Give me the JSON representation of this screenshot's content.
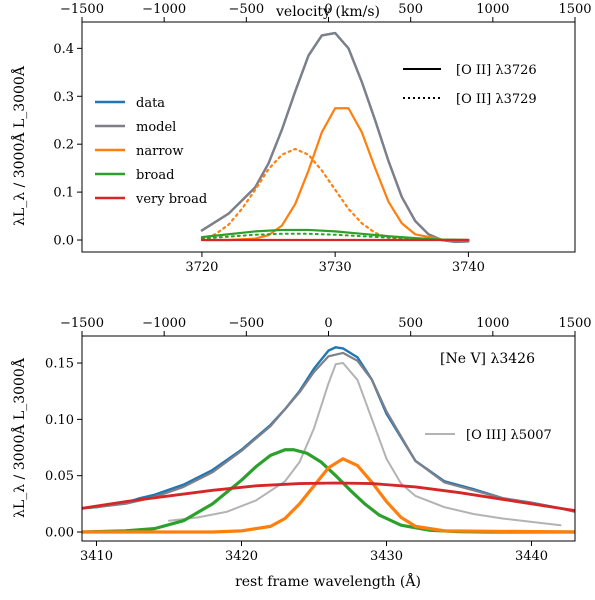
{
  "chart_data": [
    {
      "type": "line",
      "top_axis_label": "velocity (km/s)",
      "top_ticks": [
        -1500,
        -1000,
        -500,
        0,
        500,
        1000,
        1500
      ],
      "xlim": [
        3711,
        3748
      ],
      "ylim": [
        -0.025,
        0.455
      ],
      "x_ticks": [
        3720,
        3730,
        3740
      ],
      "y_ticks": [
        0.0,
        0.1,
        0.2,
        0.3,
        0.4
      ],
      "ylabel": "λL_λ / 3000Å L_3000Å",
      "legend_placement": "left",
      "line_style_legend": [
        {
          "label": "[O II] λ3726",
          "style": "solid"
        },
        {
          "label": "[O II] λ3729",
          "style": "dotted"
        }
      ],
      "series": [
        {
          "name": "data",
          "color": "#1f77b4",
          "style": "solid",
          "width": 2.2,
          "x": [
            3720,
            3722,
            3724,
            3725,
            3726,
            3727,
            3728,
            3729,
            3730,
            3731,
            3732,
            3733,
            3734,
            3735,
            3736,
            3737,
            3738,
            3739,
            3740
          ],
          "y": [
            0.02,
            0.055,
            0.11,
            0.16,
            0.23,
            0.31,
            0.385,
            0.427,
            0.432,
            0.4,
            0.33,
            0.25,
            0.165,
            0.09,
            0.04,
            0.012,
            0.0,
            -0.004,
            -0.003
          ]
        },
        {
          "name": "model",
          "color": "#7f7f8a",
          "style": "solid",
          "width": 2.4,
          "x": [
            3720,
            3722,
            3724,
            3725,
            3726,
            3727,
            3728,
            3729,
            3730,
            3731,
            3732,
            3733,
            3734,
            3735,
            3736,
            3737,
            3738,
            3739,
            3740
          ],
          "y": [
            0.02,
            0.055,
            0.11,
            0.16,
            0.23,
            0.31,
            0.385,
            0.427,
            0.432,
            0.4,
            0.33,
            0.25,
            0.165,
            0.09,
            0.04,
            0.012,
            0.0,
            -0.004,
            -0.003
          ]
        },
        {
          "name": "narrow",
          "color": "#ff7f0e",
          "style": "solid",
          "width": 2.2,
          "x": [
            3720,
            3722,
            3724,
            3725,
            3726,
            3727,
            3728,
            3729,
            3730,
            3731,
            3732,
            3733,
            3734,
            3735,
            3736,
            3738,
            3740
          ],
          "y": [
            0.0,
            0.0,
            0.003,
            0.01,
            0.03,
            0.075,
            0.145,
            0.225,
            0.275,
            0.275,
            0.225,
            0.15,
            0.08,
            0.035,
            0.012,
            0.001,
            0.0
          ]
        },
        {
          "name": "",
          "color": "#ff7f0e",
          "style": "dotted",
          "width": 2.2,
          "x": [
            3720,
            3721,
            3722,
            3723,
            3724,
            3725,
            3726,
            3727,
            3728,
            3729,
            3730,
            3731,
            3732,
            3733,
            3734,
            3736,
            3738,
            3740
          ],
          "y": [
            0.003,
            0.012,
            0.032,
            0.065,
            0.105,
            0.148,
            0.178,
            0.19,
            0.178,
            0.145,
            0.105,
            0.065,
            0.035,
            0.015,
            0.005,
            0.001,
            0.0,
            0.0
          ]
        },
        {
          "name": "broad",
          "color": "#2ca02c",
          "style": "solid",
          "width": 2.2,
          "x": [
            3720,
            3722,
            3724,
            3726,
            3728,
            3730,
            3732,
            3734,
            3736,
            3738,
            3740
          ],
          "y": [
            0.006,
            0.012,
            0.018,
            0.021,
            0.021,
            0.018,
            0.013,
            0.008,
            0.004,
            0.001,
            0.0
          ]
        },
        {
          "name": "",
          "color": "#2ca02c",
          "style": "dotted",
          "width": 2.0,
          "x": [
            3720,
            3722,
            3724,
            3726,
            3728,
            3730,
            3732,
            3734,
            3736,
            3738,
            3740
          ],
          "y": [
            0.003,
            0.007,
            0.011,
            0.013,
            0.013,
            0.011,
            0.008,
            0.005,
            0.002,
            0.0,
            0.0
          ]
        },
        {
          "name": "very broad",
          "color": "#d62728",
          "style": "solid",
          "width": 2.2,
          "x": [
            3720,
            3725,
            3730,
            3735,
            3740
          ],
          "y": [
            0.0,
            0.0,
            0.0,
            0.0,
            0.0
          ]
        }
      ]
    },
    {
      "type": "line",
      "top_ticks": [
        -1500,
        -1000,
        -500,
        0,
        500,
        1000,
        1500
      ],
      "xlim": [
        3409,
        3443
      ],
      "ylim": [
        -0.008,
        0.174
      ],
      "x_ticks": [
        3410,
        3420,
        3430,
        3440
      ],
      "y_ticks": [
        0.0,
        0.05,
        0.1,
        0.15
      ],
      "xlabel": "rest frame wavelength (Å)",
      "ylabel": "λL_λ / 3000Å L_3000Å",
      "annotation": "[Ne V] λ3426",
      "legend_placement": "right",
      "series": [
        {
          "name": "",
          "color": "#1f77b4",
          "style": "solid",
          "width": 2.4,
          "x": [
            3409,
            3410,
            3412,
            3413,
            3414,
            3416,
            3418,
            3420,
            3422,
            3423,
            3424,
            3425,
            3426,
            3426.5,
            3427,
            3428,
            3429,
            3430,
            3432,
            3434,
            3436,
            3438,
            3440,
            3442,
            3443
          ],
          "y": [
            0.021,
            0.022,
            0.026,
            0.03,
            0.033,
            0.042,
            0.055,
            0.073,
            0.095,
            0.109,
            0.125,
            0.145,
            0.161,
            0.164,
            0.163,
            0.155,
            0.135,
            0.105,
            0.063,
            0.045,
            0.038,
            0.03,
            0.026,
            0.021,
            0.018
          ]
        },
        {
          "name": "",
          "color": "#7f7f8a",
          "style": "solid",
          "width": 2.2,
          "x": [
            3409,
            3410,
            3412,
            3414,
            3416,
            3418,
            3420,
            3422,
            3424,
            3425,
            3426,
            3427,
            3428,
            3429,
            3430,
            3432,
            3434,
            3436,
            3438,
            3440,
            3442,
            3443
          ],
          "y": [
            0.021,
            0.022,
            0.025,
            0.031,
            0.04,
            0.053,
            0.072,
            0.094,
            0.124,
            0.142,
            0.156,
            0.159,
            0.152,
            0.135,
            0.107,
            0.063,
            0.044,
            0.037,
            0.03,
            0.026,
            0.021,
            0.018
          ]
        },
        {
          "name": "[O III] λ5007",
          "color": "#b3b3b3",
          "style": "solid",
          "width": 2.0,
          "x": [
            3415,
            3417,
            3419,
            3421,
            3423,
            3424,
            3425,
            3426,
            3426.5,
            3427,
            3428,
            3429,
            3430,
            3431,
            3432,
            3434,
            3436,
            3438,
            3440,
            3442
          ],
          "y": [
            0.01,
            0.013,
            0.018,
            0.028,
            0.045,
            0.062,
            0.092,
            0.132,
            0.149,
            0.15,
            0.135,
            0.1,
            0.065,
            0.043,
            0.032,
            0.022,
            0.016,
            0.012,
            0.009,
            0.006
          ]
        },
        {
          "name": "",
          "color": "#2ca02c",
          "style": "solid",
          "width": 3.2,
          "x": [
            3409,
            3412,
            3414,
            3416,
            3418,
            3420,
            3421,
            3422,
            3423,
            3423.6,
            3424.5,
            3425.5,
            3426.5,
            3427.5,
            3428.5,
            3429.5,
            3431,
            3433,
            3435,
            3437,
            3443
          ],
          "y": [
            0.0,
            0.001,
            0.003,
            0.01,
            0.025,
            0.046,
            0.058,
            0.068,
            0.073,
            0.073,
            0.07,
            0.062,
            0.05,
            0.037,
            0.025,
            0.015,
            0.006,
            0.0015,
            0.0003,
            0.0,
            0.0
          ]
        },
        {
          "name": "",
          "color": "#ff7f0e",
          "style": "solid",
          "width": 3.2,
          "x": [
            3409,
            3418,
            3420,
            3422,
            3423,
            3424,
            3425,
            3426,
            3427,
            3428,
            3429,
            3430,
            3431,
            3432,
            3434,
            3443
          ],
          "y": [
            0.0,
            0.0,
            0.001,
            0.005,
            0.012,
            0.025,
            0.041,
            0.057,
            0.065,
            0.059,
            0.044,
            0.027,
            0.013,
            0.005,
            0.001,
            0.0
          ]
        },
        {
          "name": "",
          "color": "#d62728",
          "style": "solid",
          "width": 2.8,
          "x": [
            3409,
            3412,
            3415,
            3418,
            3421,
            3424,
            3426.5,
            3429,
            3432,
            3435,
            3438,
            3441,
            3443
          ],
          "y": [
            0.021,
            0.027,
            0.032,
            0.037,
            0.041,
            0.043,
            0.0435,
            0.043,
            0.04,
            0.035,
            0.029,
            0.023,
            0.019
          ]
        }
      ]
    }
  ]
}
